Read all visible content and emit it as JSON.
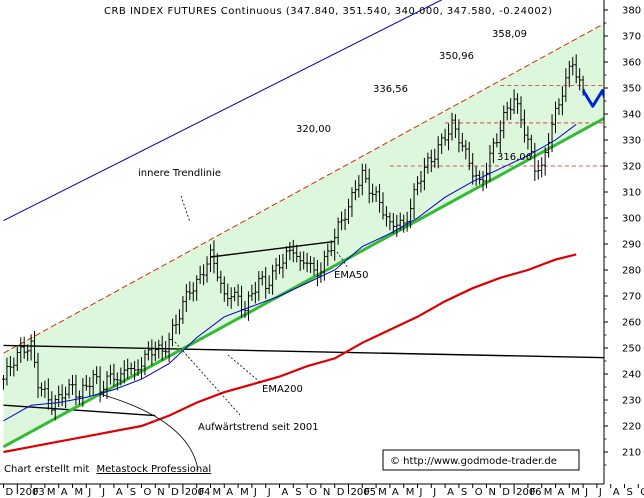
{
  "chart_data": {
    "type": "line",
    "title": "CRB INDEX FUTURES Continuous (347.840, 351.540, 340.000, 347.580, -0.24002)",
    "xlabel": "",
    "ylabel": "",
    "ylim": [
      203,
      384
    ],
    "yticks": [
      210,
      220,
      230,
      240,
      250,
      260,
      270,
      280,
      290,
      300,
      310,
      320,
      330,
      340,
      350,
      360,
      370,
      380
    ],
    "x_ticks": [
      {
        "label": "D",
        "t": -1
      },
      {
        "label": "2003",
        "t": 0
      },
      {
        "label": "F",
        "t": 1
      },
      {
        "label": "M",
        "t": 2
      },
      {
        "label": "A",
        "t": 3
      },
      {
        "label": "M",
        "t": 4
      },
      {
        "label": "J",
        "t": 5
      },
      {
        "label": "J",
        "t": 6
      },
      {
        "label": "A",
        "t": 7
      },
      {
        "label": "S",
        "t": 8
      },
      {
        "label": "O",
        "t": 9
      },
      {
        "label": "N",
        "t": 10
      },
      {
        "label": "D",
        "t": 11
      },
      {
        "label": "2004",
        "t": 12
      },
      {
        "label": "F",
        "t": 13
      },
      {
        "label": "M",
        "t": 14
      },
      {
        "label": "A",
        "t": 15
      },
      {
        "label": "M",
        "t": 16
      },
      {
        "label": "J",
        "t": 17
      },
      {
        "label": "J",
        "t": 18
      },
      {
        "label": "A",
        "t": 19
      },
      {
        "label": "S",
        "t": 20
      },
      {
        "label": "O",
        "t": 21
      },
      {
        "label": "N",
        "t": 22
      },
      {
        "label": "D",
        "t": 23
      },
      {
        "label": "2005",
        "t": 24
      },
      {
        "label": "F",
        "t": 25
      },
      {
        "label": "M",
        "t": 26
      },
      {
        "label": "A",
        "t": 27
      },
      {
        "label": "M",
        "t": 28
      },
      {
        "label": "J",
        "t": 29
      },
      {
        "label": "J",
        "t": 30
      },
      {
        "label": "A",
        "t": 31
      },
      {
        "label": "S",
        "t": 32
      },
      {
        "label": "O",
        "t": 33
      },
      {
        "label": "N",
        "t": 34
      },
      {
        "label": "D",
        "t": 35
      },
      {
        "label": "2006",
        "t": 36
      },
      {
        "label": "F",
        "t": 37
      },
      {
        "label": "M",
        "t": 38
      },
      {
        "label": "A",
        "t": 39
      },
      {
        "label": "M",
        "t": 40
      },
      {
        "label": "J",
        "t": 41
      },
      {
        "label": "J",
        "t": 42
      },
      {
        "label": "A",
        "t": 43
      },
      {
        "label": "S",
        "t": 44
      },
      {
        "label": "O",
        "t": 45
      }
    ],
    "price_path": [
      [
        -1,
        238
      ],
      [
        -0.5,
        242
      ],
      [
        0,
        246
      ],
      [
        0.5,
        250
      ],
      [
        1,
        252
      ],
      [
        1.5,
        238
      ],
      [
        2,
        232
      ],
      [
        2.5,
        227
      ],
      [
        3,
        229
      ],
      [
        3.5,
        234
      ],
      [
        4,
        236
      ],
      [
        4.5,
        233
      ],
      [
        5,
        235
      ],
      [
        5.5,
        238
      ],
      [
        6,
        233
      ],
      [
        6.5,
        238
      ],
      [
        7,
        241
      ],
      [
        7.5,
        239
      ],
      [
        8,
        244
      ],
      [
        8.5,
        238
      ],
      [
        9,
        244
      ],
      [
        9.5,
        248
      ],
      [
        10,
        252
      ],
      [
        10.5,
        249
      ],
      [
        11,
        253
      ],
      [
        11.5,
        258
      ],
      [
        12,
        266
      ],
      [
        12.5,
        273
      ],
      [
        13,
        276
      ],
      [
        13.5,
        281
      ],
      [
        14,
        285
      ],
      [
        14.5,
        278
      ],
      [
        15,
        268
      ],
      [
        15.5,
        272
      ],
      [
        16,
        270
      ],
      [
        16.5,
        266
      ],
      [
        17,
        270
      ],
      [
        17.5,
        275
      ],
      [
        18,
        273
      ],
      [
        18.5,
        279
      ],
      [
        19,
        284
      ],
      [
        19.5,
        286
      ],
      [
        20,
        288
      ],
      [
        20.5,
        280
      ],
      [
        21,
        284
      ],
      [
        21.5,
        279
      ],
      [
        22,
        282
      ],
      [
        22.5,
        287
      ],
      [
        23,
        292
      ],
      [
        23.5,
        298
      ],
      [
        24,
        303
      ],
      [
        24.5,
        313
      ],
      [
        25,
        318
      ],
      [
        25.5,
        312
      ],
      [
        26,
        307
      ],
      [
        26.5,
        302
      ],
      [
        27,
        296
      ],
      [
        27.5,
        300
      ],
      [
        28,
        298
      ],
      [
        28.5,
        305
      ],
      [
        29,
        312
      ],
      [
        29.5,
        318
      ],
      [
        30,
        322
      ],
      [
        30.5,
        328
      ],
      [
        31,
        333
      ],
      [
        31.5,
        336
      ],
      [
        32,
        330
      ],
      [
        32.5,
        323
      ],
      [
        33,
        318
      ],
      [
        33.5,
        314
      ],
      [
        34,
        320
      ],
      [
        34.5,
        328
      ],
      [
        35,
        333
      ],
      [
        35.5,
        341
      ],
      [
        36,
        345
      ],
      [
        36.5,
        340
      ],
      [
        37,
        330
      ],
      [
        37.5,
        320
      ],
      [
        38,
        317
      ],
      [
        38.5,
        330
      ],
      [
        39,
        340
      ],
      [
        39.5,
        350
      ],
      [
        40,
        358
      ],
      [
        40.3,
        362
      ],
      [
        40.6,
        352
      ],
      [
        41,
        347.6
      ]
    ],
    "series": [
      {
        "type": "bar",
        "color": "#000000",
        "values": "ohlc generated along price_path"
      },
      {
        "name": "EMA50",
        "type": "line",
        "color": "#0000cc",
        "points": [
          [
            -1,
            222
          ],
          [
            1,
            228
          ],
          [
            3,
            229
          ],
          [
            5,
            231
          ],
          [
            7,
            234
          ],
          [
            9,
            238
          ],
          [
            11,
            244
          ],
          [
            13,
            254
          ],
          [
            15,
            262
          ],
          [
            17,
            266
          ],
          [
            19,
            270
          ],
          [
            21,
            275
          ],
          [
            23,
            280
          ],
          [
            25,
            289
          ],
          [
            27,
            294
          ],
          [
            29,
            300
          ],
          [
            31,
            308
          ],
          [
            33,
            314
          ],
          [
            35,
            319
          ],
          [
            37,
            324
          ],
          [
            39,
            330
          ],
          [
            40.5,
            336
          ]
        ]
      },
      {
        "name": "EMA200",
        "type": "line",
        "color": "#dd0000",
        "points": [
          [
            -1,
            210
          ],
          [
            1,
            212
          ],
          [
            3,
            214
          ],
          [
            5,
            216
          ],
          [
            7,
            218
          ],
          [
            9,
            220
          ],
          [
            11,
            224
          ],
          [
            13,
            229
          ],
          [
            15,
            233
          ],
          [
            17,
            236
          ],
          [
            19,
            239
          ],
          [
            21,
            243
          ],
          [
            23,
            246
          ],
          [
            25,
            252
          ],
          [
            27,
            257
          ],
          [
            29,
            262
          ],
          [
            31,
            268
          ],
          [
            33,
            273
          ],
          [
            35,
            277
          ],
          [
            37,
            280
          ],
          [
            39,
            284
          ],
          [
            40.5,
            286
          ]
        ]
      },
      {
        "name": "Aufwärtstrend seit 2001",
        "type": "line",
        "color": "#33bb33",
        "points": [
          [
            -1,
            212
          ],
          [
            45,
            345.5
          ]
        ]
      },
      {
        "type": "line",
        "color": "#cc3300",
        "dash": "6,3",
        "points": [
          [
            -1,
            248
          ],
          [
            45,
            382
          ]
        ]
      },
      {
        "type": "line",
        "color": "#0000aa",
        "points": [
          [
            -1,
            299
          ],
          [
            45,
            422
          ]
        ]
      },
      {
        "type": "line",
        "color": "#000000",
        "points": [
          [
            -1,
            251
          ],
          [
            45,
            246
          ]
        ]
      },
      {
        "name": "innere Trendlinie",
        "type": "line",
        "color": "#000000",
        "points": [
          [
            14,
            285
          ],
          [
            23,
            291
          ]
        ]
      },
      {
        "type": "line",
        "color": "#000000",
        "points": [
          [
            -1,
            228
          ],
          [
            10,
            224
          ]
        ]
      },
      {
        "type": "line",
        "color": "#0022dd",
        "points": [
          [
            41,
            349
          ],
          [
            41.7,
            343
          ],
          [
            42.4,
            349
          ],
          [
            43.1,
            338
          ],
          [
            43.8,
            345
          ],
          [
            44.4,
            350
          ],
          [
            44.9,
            358
          ],
          [
            45.3,
            366
          ],
          [
            45.6,
            360
          ]
        ]
      }
    ],
    "horizontal_levels": [
      {
        "value": 320,
        "from_t": 27,
        "label": "320,00"
      },
      {
        "value": 336.56,
        "from_t": 31,
        "label": "336,56"
      },
      {
        "value": 350.96,
        "from_t": 35,
        "label": "350,96"
      }
    ],
    "annotations": {
      "high_label": "358,09",
      "low_label": "316,06",
      "ema50_label": "EMA50",
      "ema200_label": "EMA200",
      "trend_label": "Aufwärtstrend seit 2001",
      "inner_label": "innere Trendlinie"
    },
    "footer": {
      "created_prefix": "Chart erstellt mit",
      "created_link": "Metastock Professional",
      "copyright": "© http://www.godmode-trader.de"
    },
    "grid": false,
    "legend": "none"
  }
}
